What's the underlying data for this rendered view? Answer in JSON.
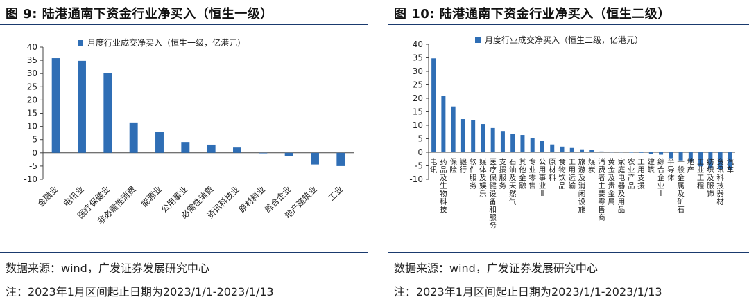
{
  "left": {
    "title": "图 9:  陆港通南下资金行业净买入（恒生一级）",
    "source": "数据来源：wind，广发证券发展研究中心",
    "note": "注：2023年1月区间起止日期为2023/1/1-2023/1/13",
    "bar_color": "#2f6eb5"
  },
  "right": {
    "title": "图 10:  陆港通南下资金行业净买入（恒生二级）",
    "source": "数据来源：wind，广发证券发展研究中心",
    "note": "注：2023年1月区间起止日期为2023/1/1-2023/1/13",
    "bar_color": "#2f6eb5"
  },
  "chart_data": [
    {
      "type": "bar",
      "legend": "月度行业成交净买入（恒生一级，亿港元）",
      "categories": [
        "金融业",
        "电讯业",
        "医疗保健业",
        "非必需性消费",
        "能源业",
        "公用事业",
        "必需性消费",
        "资讯科技业",
        "原材料业",
        "综合企业",
        "地产建筑业",
        "工业"
      ],
      "values": [
        35.8,
        34.8,
        30.2,
        11.5,
        8.0,
        4.1,
        3.1,
        2.0,
        -0.2,
        -1.2,
        -4.4,
        -5.0
      ],
      "ylim": [
        -10,
        40
      ],
      "yticks": [
        -10,
        -5,
        0,
        5,
        10,
        15,
        20,
        25,
        30,
        35,
        40
      ]
    },
    {
      "type": "bar",
      "legend": "月度行业成交净买入（恒生二级，亿港元）",
      "categories": [
        "电讯",
        "药品及生物科技",
        "保险",
        "银行",
        "软件服务",
        "媒体及娱乐",
        "医疗保健设备和服务",
        "支援服务",
        "石油及天然气",
        "其他金融",
        "专业零售",
        "公用事业Ⅱ",
        "原材料",
        "食物饮品",
        "工用运输",
        "旅游及消闲设施",
        "煤炭",
        "消费者主要零售商",
        "黄金及贵金属",
        "家庭电器及用品",
        "农业产品",
        "工用支援",
        "建筑",
        "综合企业Ⅱ",
        "半导体",
        "一般金属及矿石",
        "地产",
        "工业工程",
        "纺织及服饰",
        "资讯科技器材",
        "汽车"
      ],
      "values": [
        34.8,
        21.0,
        17.0,
        12.3,
        12.0,
        10.5,
        9.0,
        7.9,
        6.8,
        6.4,
        5.2,
        4.3,
        2.9,
        2.1,
        1.6,
        1.1,
        0.8,
        0.3,
        0.1,
        0.1,
        0.0,
        -0.2,
        -0.6,
        -0.9,
        -2.2,
        -3.0,
        -3.5,
        -5.2,
        -6.0,
        -6.2,
        -6.6
      ],
      "ylim": [
        -10,
        40
      ],
      "yticks": [
        -10,
        -5,
        0,
        5,
        10,
        15,
        20,
        25,
        30,
        35,
        40
      ]
    }
  ]
}
